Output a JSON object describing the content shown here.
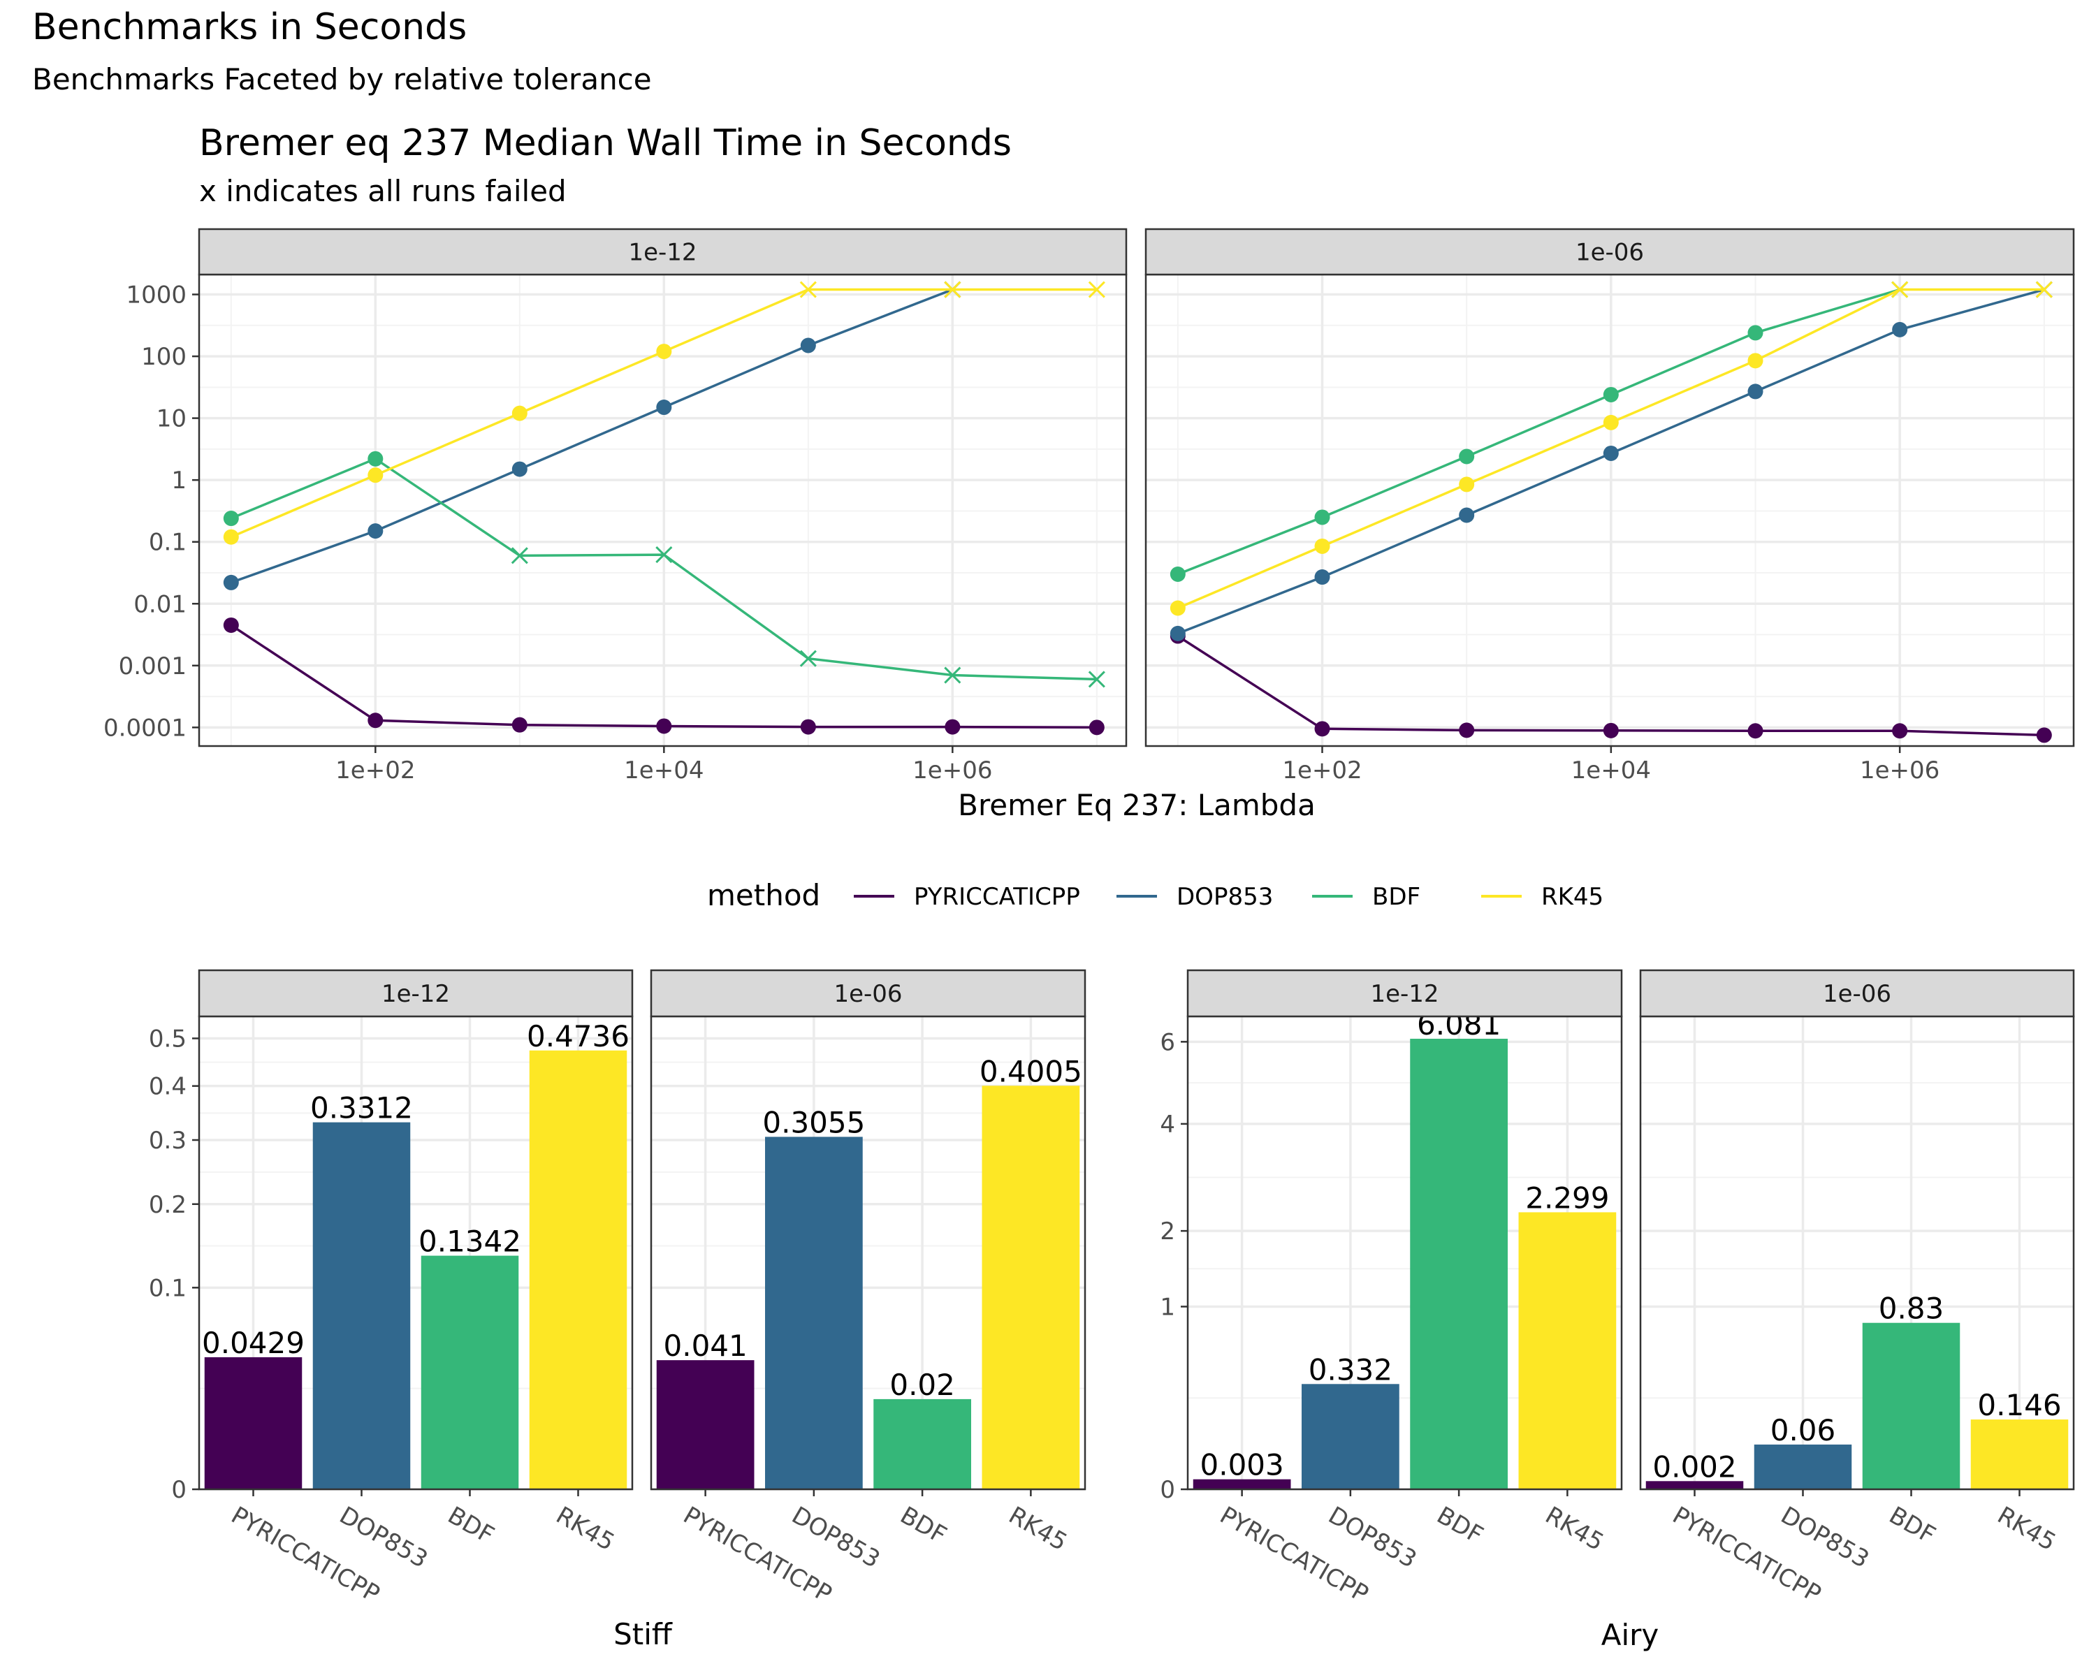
{
  "page": {
    "title": "Benchmarks in Seconds",
    "subtitle": "Benchmarks Faceted by relative tolerance"
  },
  "chart_data": [
    {
      "type": "line",
      "title": "Bremer eq 237 Median Wall Time in Seconds",
      "subtitle": "x indicates all runs failed",
      "xlabel": "Bremer Eq 237: Lambda",
      "ylabel": "",
      "x_scale": "log10",
      "y_scale": "log10",
      "x": [
        10,
        100,
        1000,
        10000,
        100000,
        1000000,
        10000000
      ],
      "x_tick_values": [
        100,
        10000,
        1000000
      ],
      "x_tick_labels": [
        "1e+02",
        "1e+04",
        "1e+06"
      ],
      "y_tick_values": [
        0.0001,
        0.001,
        0.01,
        0.1,
        1,
        10,
        100,
        1000
      ],
      "y_tick_labels": [
        "0.0001",
        "0.001",
        "0.01",
        "0.1",
        "1",
        "10",
        "100",
        "1000"
      ],
      "xlim": [
        6,
        16000000
      ],
      "ylim": [
        5e-05,
        2100
      ],
      "grid": true,
      "legend": {
        "title": "method",
        "position": "bottom",
        "entries": [
          "PYRICCATICPP",
          "DOP853",
          "BDF",
          "RK45"
        ],
        "colors": [
          "#440154",
          "#31688E",
          "#35B779",
          "#FDE725"
        ]
      },
      "marker_note": "x markers = all runs failed",
      "facets": [
        {
          "label": "1e-12",
          "series": [
            {
              "name": "PYRICCATICPP",
              "color": "#440154",
              "values": [
                0.0045,
                0.00013,
                0.00011,
                0.000105,
                0.000102,
                0.000102,
                0.0001
              ],
              "failed": [
                false,
                false,
                false,
                false,
                false,
                false,
                false
              ]
            },
            {
              "name": "DOP853",
              "color": "#31688E",
              "values": [
                0.022,
                0.15,
                1.5,
                15,
                150,
                1200,
                null
              ],
              "failed": [
                false,
                false,
                false,
                false,
                false,
                true,
                false
              ]
            },
            {
              "name": "BDF",
              "color": "#35B779",
              "values": [
                0.24,
                2.2,
                0.06,
                0.062,
                0.0013,
                0.0007,
                0.0006
              ],
              "failed": [
                false,
                false,
                true,
                true,
                true,
                true,
                true
              ]
            },
            {
              "name": "RK45",
              "color": "#FDE725",
              "values": [
                0.12,
                1.2,
                12,
                120,
                1200,
                1200,
                1200
              ],
              "failed": [
                false,
                false,
                false,
                false,
                true,
                true,
                true
              ]
            }
          ]
        },
        {
          "label": "1e-06",
          "series": [
            {
              "name": "PYRICCATICPP",
              "color": "#440154",
              "values": [
                0.003,
                9.5e-05,
                9e-05,
                8.9e-05,
                8.8e-05,
                8.8e-05,
                7.5e-05
              ],
              "failed": [
                false,
                false,
                false,
                false,
                false,
                false,
                false
              ]
            },
            {
              "name": "DOP853",
              "color": "#31688E",
              "values": [
                0.0033,
                0.027,
                0.27,
                2.7,
                27,
                270,
                1200
              ],
              "failed": [
                false,
                false,
                false,
                false,
                false,
                false,
                true
              ]
            },
            {
              "name": "BDF",
              "color": "#35B779",
              "values": [
                0.03,
                0.25,
                2.4,
                24,
                240,
                1200,
                null
              ],
              "failed": [
                false,
                false,
                false,
                false,
                false,
                true,
                false
              ]
            },
            {
              "name": "RK45",
              "color": "#FDE725",
              "values": [
                0.0085,
                0.085,
                0.85,
                8.5,
                85,
                1200,
                1200
              ],
              "failed": [
                false,
                false,
                false,
                false,
                false,
                true,
                true
              ]
            }
          ]
        }
      ]
    },
    {
      "type": "bar",
      "xlabel": "Stiff",
      "ylabel": "",
      "y_scale": "sqrt",
      "categories": [
        "PYRICCATICPP",
        "DOP853",
        "BDF",
        "RK45"
      ],
      "colors": [
        "#440154",
        "#31688E",
        "#35B779",
        "#FDE725"
      ],
      "y_tick_values": [
        0,
        0.1,
        0.2,
        0.3,
        0.4,
        0.5
      ],
      "y_tick_labels": [
        "0",
        "0.1",
        "0.2",
        "0.3",
        "0.4",
        "0.5"
      ],
      "ylim": [
        0,
        0.55
      ],
      "grid": true,
      "facets": [
        {
          "label": "1e-12",
          "values": [
            0.0429,
            0.3312,
            0.1342,
            0.4736
          ],
          "value_labels": [
            "0.0429",
            "0.3312",
            "0.1342",
            "0.4736"
          ]
        },
        {
          "label": "1e-06",
          "values": [
            0.041,
            0.3055,
            0.02,
            0.4005
          ],
          "value_labels": [
            "0.041",
            "0.3055",
            "0.02",
            "0.4005"
          ]
        }
      ]
    },
    {
      "type": "bar",
      "xlabel": "Airy",
      "ylabel": "",
      "y_scale": "sqrt",
      "categories": [
        "PYRICCATICPP",
        "DOP853",
        "BDF",
        "RK45"
      ],
      "colors": [
        "#440154",
        "#31688E",
        "#35B779",
        "#FDE725"
      ],
      "y_tick_values": [
        0,
        1,
        2,
        4,
        6
      ],
      "y_tick_labels": [
        "0",
        "1",
        "2",
        "4",
        "6"
      ],
      "ylim": [
        0,
        6.7
      ],
      "grid": true,
      "facets": [
        {
          "label": "1e-12",
          "values": [
            0.003,
            0.332,
            6.081,
            2.299
          ],
          "value_labels": [
            "0.003",
            "0.332",
            "6.081",
            "2.299"
          ]
        },
        {
          "label": "1e-06",
          "values": [
            0.002,
            0.06,
            0.83,
            0.146
          ],
          "value_labels": [
            "0.002",
            "0.06",
            "0.83",
            "0.146"
          ]
        }
      ]
    }
  ]
}
